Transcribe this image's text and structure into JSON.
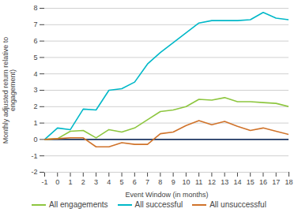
{
  "chart_data": {
    "type": "line",
    "xlabel": "Event Window (in months)",
    "ylabel": "Monthly adjusted return relative to\nengagement)",
    "x": [
      -1,
      0,
      1,
      2,
      3,
      4,
      5,
      6,
      7,
      8,
      9,
      10,
      11,
      12,
      13,
      14,
      15,
      16,
      17,
      18
    ],
    "series": [
      {
        "color": "#1f3864",
        "values": [
          0.0,
          0.0,
          0.0,
          0.0,
          0.0,
          0.0,
          0.0,
          0.0,
          0.0,
          0.0,
          0.0,
          0.0,
          0.0,
          0.0,
          0.0,
          0.0,
          0.0,
          0.0,
          0.0,
          0.0
        ]
      },
      {
        "name": "All engagements",
        "color": "#8dc63f",
        "values": [
          0.0,
          0.05,
          0.5,
          0.55,
          0.1,
          0.6,
          0.45,
          0.7,
          1.2,
          1.7,
          1.8,
          2.0,
          2.45,
          2.4,
          2.55,
          2.3,
          2.3,
          2.25,
          2.2,
          2.0
        ]
      },
      {
        "name": "All successful",
        "color": "#00b8c8",
        "values": [
          0.0,
          0.7,
          0.6,
          1.85,
          1.8,
          3.0,
          3.1,
          3.5,
          4.6,
          5.3,
          5.9,
          6.5,
          7.1,
          7.25,
          7.25,
          7.25,
          7.3,
          7.75,
          7.4,
          7.3
        ]
      },
      {
        "name": "All unsuccessful",
        "color": "#d0732a",
        "values": [
          0.0,
          0.05,
          0.1,
          0.1,
          -0.45,
          -0.45,
          -0.2,
          -0.3,
          -0.3,
          0.35,
          0.45,
          0.85,
          1.15,
          0.9,
          1.1,
          0.8,
          0.55,
          0.7,
          0.5,
          0.3
        ]
      }
    ],
    "xlim": [
      -1,
      18
    ],
    "xticks": [
      -1,
      0,
      1,
      2,
      3,
      4,
      5,
      6,
      7,
      8,
      9,
      10,
      11,
      12,
      13,
      14,
      15,
      16,
      17,
      18
    ],
    "ylim": [
      -2,
      8
    ],
    "yticks": [
      -2,
      -1,
      0,
      1,
      2,
      3,
      4,
      5,
      6,
      7,
      8
    ],
    "grid": true,
    "legend": "bottom"
  }
}
